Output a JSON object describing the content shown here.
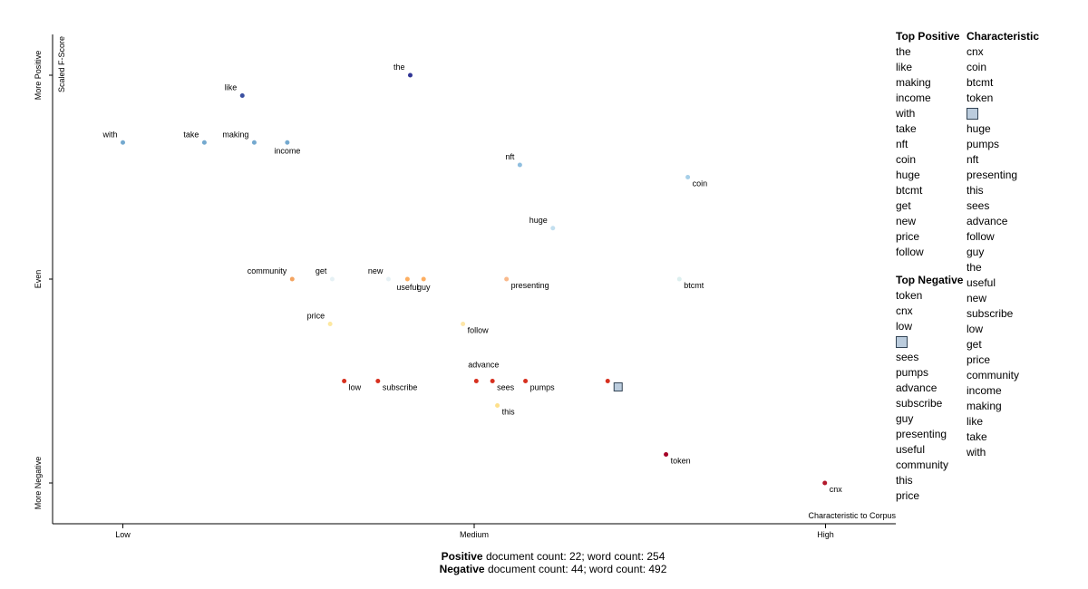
{
  "chart_data": {
    "type": "scatter",
    "x_label": "Characteristic to Corpus",
    "y_label": "Scaled F-Score",
    "categories": [
      "the",
      "like",
      "with",
      "take",
      "making",
      "income",
      "nft",
      "coin",
      "huge",
      "community",
      "get",
      "new",
      "useful",
      "guy",
      "presenting",
      "btcmt",
      "price",
      "follow",
      "low",
      "subscribe",
      "advance",
      "sees",
      "pumps",
      null,
      "this",
      "token",
      "cnx"
    ],
    "x": [
      0.409,
      0.17,
      0.0,
      0.116,
      0.187,
      0.234,
      0.565,
      0.804,
      0.612,
      0.241,
      0.298,
      0.378,
      0.405,
      0.428,
      0.546,
      0.792,
      0.295,
      0.484,
      0.315,
      0.363,
      0.503,
      0.526,
      0.573,
      0.69,
      0.533,
      0.773,
      0.999
    ],
    "values": [
      1.0,
      0.9,
      0.67,
      0.67,
      0.67,
      0.67,
      0.56,
      0.5,
      0.25,
      0.0,
      0.0,
      0.0,
      0.0,
      0.0,
      0.0,
      0.0,
      -0.22,
      -0.22,
      -0.5,
      -0.5,
      -0.5,
      -0.5,
      -0.5,
      -0.5,
      -0.62,
      -0.86,
      -1.0
    ],
    "colors": [
      "#313695",
      "#3a4fa0",
      "#74a9cf",
      "#74a9cf",
      "#74a9cf",
      "#74a9cf",
      "#8fbedf",
      "#a6cfe8",
      "#c2dfef",
      "#f4a460",
      "#e6f1f5",
      "#e6f1f5",
      "#fdae61",
      "#fdae61",
      "#f9b98b",
      "#dcefef",
      "#fde8a0",
      "#fde6a8",
      "#d7301f",
      "#d7301f",
      "#d7301f",
      "#d7301f",
      "#d7301f",
      "#d7301f",
      "#fee08b",
      "#a50026",
      "#b2182b"
    ],
    "xlim": [
      -0.1,
      1.1
    ],
    "ylim": [
      -1.2,
      1.2
    ],
    "xticks": [
      {
        "value": 0,
        "label": "Low"
      },
      {
        "value": 0.5,
        "label": "Medium"
      },
      {
        "value": 1,
        "label": "High"
      }
    ],
    "yticks": [
      {
        "value": -1,
        "label": "More Negative"
      },
      {
        "value": 0,
        "label": "Even"
      },
      {
        "value": 1,
        "label": "More Positive"
      }
    ]
  },
  "top_positive": {
    "title": "Top Positive",
    "items": [
      "the",
      "like",
      "making",
      "income",
      "with",
      "take",
      "nft",
      "coin",
      "huge",
      "btcmt",
      "get",
      "new",
      "price",
      "follow"
    ]
  },
  "top_negative": {
    "title": "Top Negative",
    "items": [
      "token",
      "cnx",
      "low",
      null,
      "sees",
      "pumps",
      "advance",
      "subscribe",
      "guy",
      "presenting",
      "useful",
      "community",
      "this",
      "price"
    ]
  },
  "characteristic": {
    "title": "Characteristic",
    "items": [
      "cnx",
      "coin",
      "btcmt",
      "token",
      null,
      "huge",
      "pumps",
      "nft",
      "presenting",
      "this",
      "sees",
      "advance",
      "follow",
      "guy",
      "the",
      "useful",
      "new",
      "subscribe",
      "low",
      "get",
      "price",
      "community",
      "income",
      "making",
      "like",
      "take",
      "with"
    ]
  },
  "footer": [
    {
      "label": "Positive",
      "text": " document count: 22; word count: 254"
    },
    {
      "label": "Negative",
      "text": " document count: 44; word count: 492"
    }
  ]
}
